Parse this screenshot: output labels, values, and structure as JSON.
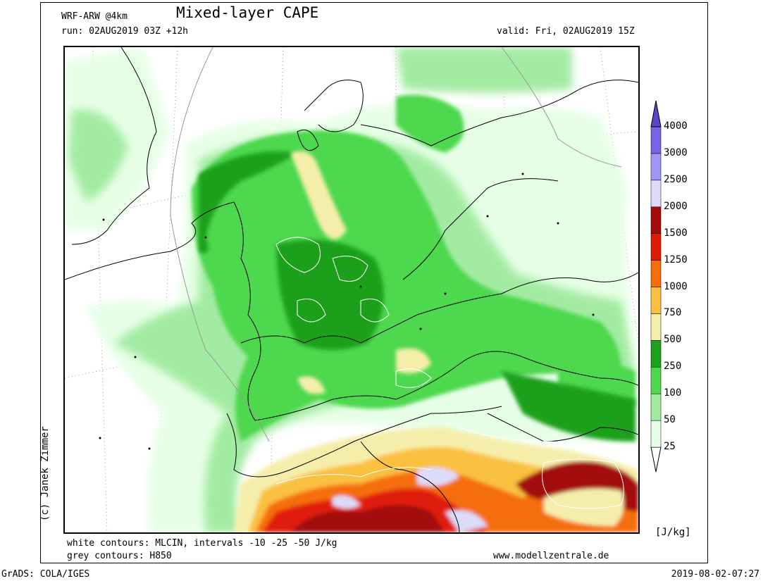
{
  "header": {
    "model": "WRF-ARW @4km",
    "title": "Mixed-layer CAPE",
    "run": "run: 02AUG2019 03Z +12h",
    "valid": "valid: Fri, 02AUG2019 15Z"
  },
  "footer": {
    "contours_white": "white contours: MLCIN, intervals -10 -25 -50 J/kg",
    "contours_grey": "grey contours: H850",
    "website": "www.modellzentrale.de",
    "grads": "GrADS: COLA/IGES",
    "timestamp": "2019-08-02-07:27",
    "copyright": "(c) Janek Zimmer"
  },
  "legend": {
    "unit": "[J/kg]",
    "levels": [
      {
        "label": "25",
        "color": "#e6ffe6"
      },
      {
        "label": "50",
        "color": "#a3eba3"
      },
      {
        "label": "100",
        "color": "#4ed84e"
      },
      {
        "label": "250",
        "color": "#1ea01e"
      },
      {
        "label": "500",
        "color": "#f5eeaa"
      },
      {
        "label": "750",
        "color": "#fac040"
      },
      {
        "label": "1000",
        "color": "#f56e0a"
      },
      {
        "label": "1250",
        "color": "#e01a0a"
      },
      {
        "label": "1500",
        "color": "#a30a0a"
      },
      {
        "label": "2000",
        "color": "#dcdcfa"
      },
      {
        "label": "2500",
        "color": "#a096f5"
      },
      {
        "label": "3000",
        "color": "#7864e6"
      },
      {
        "label": "4000",
        "color": "#5a46c8"
      }
    ]
  }
}
